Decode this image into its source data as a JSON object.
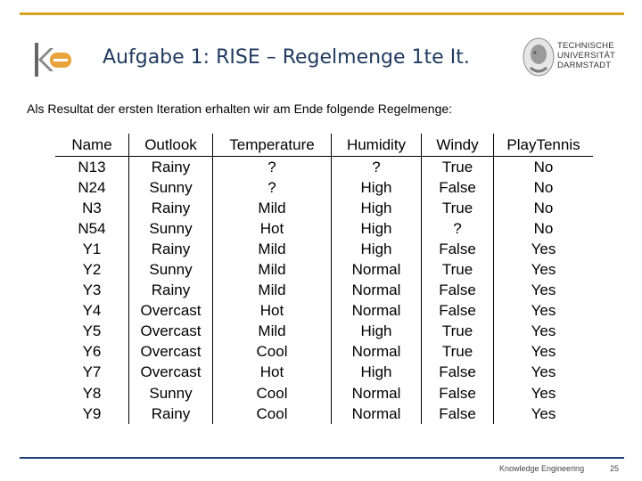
{
  "slide": {
    "title": "Aufgabe 1: RISE – Regelmenge 1te It.",
    "intro": "Als Resultat der ersten Iteration erhalten wir am Ende folgende Regelmenge:",
    "footer": "Knowledge Engineering",
    "page_number": "25"
  },
  "logos": {
    "left_logo": "ke-logo",
    "university_lines": [
      "TECHNISCHE",
      "UNIVERSITÄT",
      "DARMSTADT"
    ]
  },
  "colors": {
    "accent_gold": "#d2a51e",
    "navy": "#1a3d6e",
    "title_blue": "#1f3a5f"
  },
  "table": {
    "headers": [
      "Name",
      "Outlook",
      "Temperature",
      "Humidity",
      "Windy",
      "PlayTennis"
    ],
    "rows": [
      [
        "N13",
        "Rainy",
        "?",
        "?",
        "True",
        "No"
      ],
      [
        "N24",
        "Sunny",
        "?",
        "High",
        "False",
        "No"
      ],
      [
        "N3",
        "Rainy",
        "Mild",
        "High",
        "True",
        "No"
      ],
      [
        "N54",
        "Sunny",
        "Hot",
        "High",
        "?",
        "No"
      ],
      [
        "Y1",
        "Rainy",
        "Mild",
        "High",
        "False",
        "Yes"
      ],
      [
        "Y2",
        "Sunny",
        "Mild",
        "Normal",
        "True",
        "Yes"
      ],
      [
        "Y3",
        "Rainy",
        "Mild",
        "Normal",
        "False",
        "Yes"
      ],
      [
        "Y4",
        "Overcast",
        "Hot",
        "Normal",
        "False",
        "Yes"
      ],
      [
        "Y5",
        "Overcast",
        "Mild",
        "High",
        "True",
        "Yes"
      ],
      [
        "Y6",
        "Overcast",
        "Cool",
        "Normal",
        "True",
        "Yes"
      ],
      [
        "Y7",
        "Overcast",
        "Hot",
        "High",
        "False",
        "Yes"
      ],
      [
        "Y8",
        "Sunny",
        "Cool",
        "Normal",
        "False",
        "Yes"
      ],
      [
        "Y9",
        "Rainy",
        "Cool",
        "Normal",
        "False",
        "Yes"
      ]
    ]
  }
}
